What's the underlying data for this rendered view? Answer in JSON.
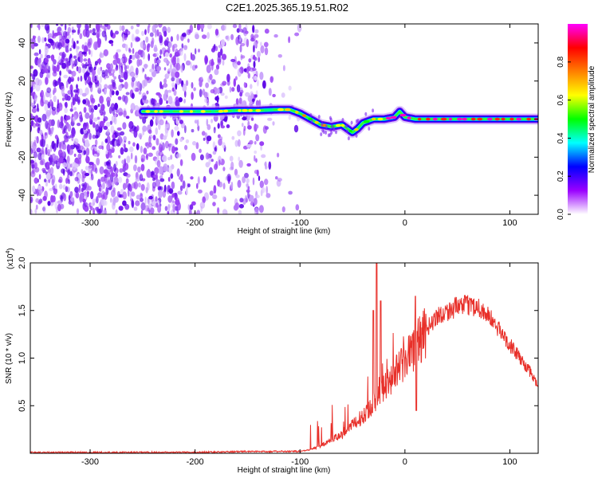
{
  "title": "C2E1.2025.365.19.51.R02",
  "spectrogram": {
    "xlabel": "Height of straight line (km)",
    "ylabel": "Frequency (Hz)",
    "xlim": [
      -357,
      127
    ],
    "ylim": [
      -50,
      50
    ],
    "xticks": [
      -300,
      -200,
      -100,
      0,
      100
    ],
    "yticks": [
      -40,
      -20,
      0,
      20,
      40
    ],
    "colorbar": {
      "label": "Normalized spectral amplitude",
      "range": [
        0.0,
        1.0
      ],
      "ticks": [
        0.0,
        0.2,
        0.4,
        0.6,
        0.8
      ],
      "tick_labels": [
        "0.0",
        "0.2",
        "0.4",
        "0.6",
        "0.8"
      ],
      "colors": [
        "#ffffff",
        "#9a00ff",
        "#0000ff",
        "#00ffff",
        "#00ff00",
        "#ffff00",
        "#ff7f00",
        "#ff0000",
        "#ff00ff"
      ]
    },
    "ridge_line": {
      "x": [
        -250,
        -220,
        -200,
        -180,
        -160,
        -140,
        -120,
        -110,
        -100,
        -90,
        -80,
        -70,
        -60,
        -55,
        -50,
        -45,
        -40,
        -30,
        -20,
        -10,
        -5,
        0,
        10,
        50,
        100,
        127
      ],
      "y": [
        4,
        4,
        4,
        4,
        4.5,
        4.5,
        5,
        5,
        3,
        0,
        -3,
        -4,
        -3,
        -5,
        -7,
        -5,
        -2,
        0,
        0,
        1,
        4,
        1,
        0,
        0,
        0,
        0
      ]
    }
  },
  "snr": {
    "xlabel": "Height of straight line (km)",
    "ylabel": "SNR (10 * v/v)",
    "multiplier": "(x10",
    "exponent": "4",
    "multiplier_close": ")",
    "xlim": [
      -357,
      127
    ],
    "ylim": [
      0,
      2.0
    ],
    "xticks": [
      -300,
      -200,
      -100,
      0,
      100
    ],
    "yticks": [
      0.5,
      1.0,
      1.5,
      2.0
    ],
    "ytick_labels": [
      "0.5",
      "1.0",
      "1.5",
      "2.0"
    ],
    "line_color": "#e8302a",
    "envelope": {
      "x": [
        -357,
        -300,
        -200,
        -150,
        -120,
        -100,
        -90,
        -80,
        -70,
        -60,
        -50,
        -40,
        -30,
        -20,
        -10,
        0,
        10,
        20,
        30,
        40,
        50,
        60,
        70,
        80,
        90,
        100,
        110,
        120,
        127
      ],
      "y": [
        0.01,
        0.01,
        0.01,
        0.02,
        0.02,
        0.02,
        0.04,
        0.08,
        0.15,
        0.2,
        0.3,
        0.4,
        0.55,
        0.7,
        0.85,
        1.0,
        1.15,
        1.3,
        1.45,
        1.5,
        1.55,
        1.57,
        1.55,
        1.45,
        1.3,
        1.15,
        1.0,
        0.85,
        0.7
      ]
    },
    "spikes": [
      {
        "x": -27,
        "y": 2.0
      },
      {
        "x": -30,
        "y": 1.5
      },
      {
        "x": -23,
        "y": 1.6
      },
      {
        "x": 10,
        "y": 1.65
      },
      {
        "x": 11,
        "y": 0.45
      }
    ]
  }
}
